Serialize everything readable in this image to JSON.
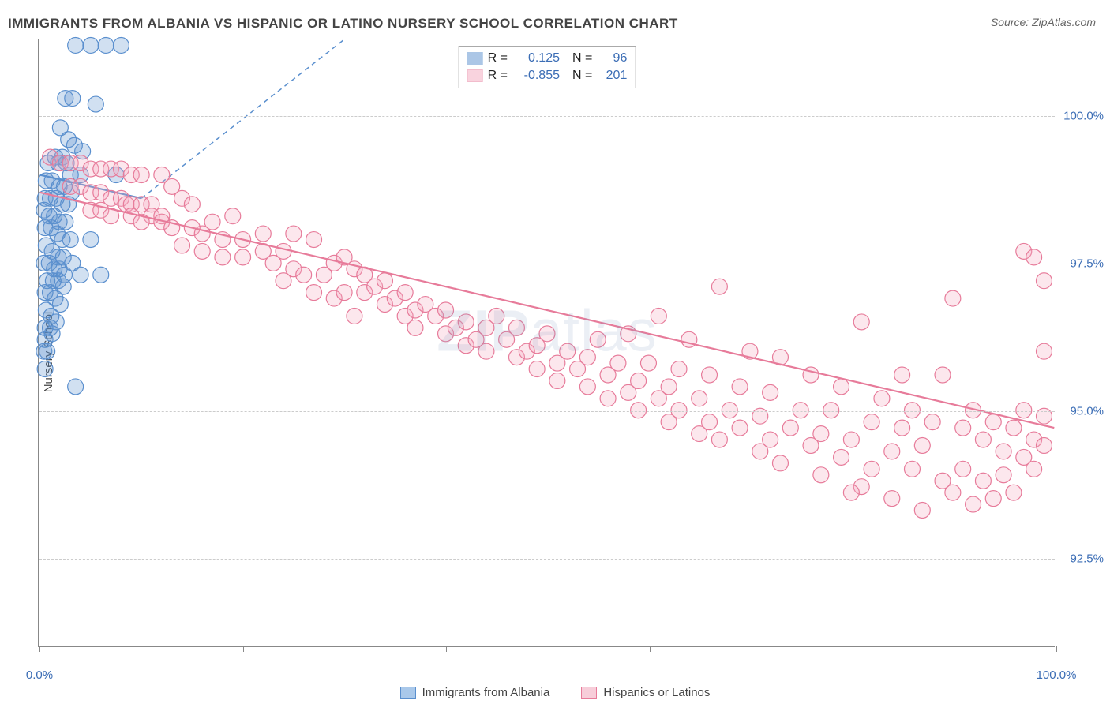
{
  "title": "IMMIGRANTS FROM ALBANIA VS HISPANIC OR LATINO NURSERY SCHOOL CORRELATION CHART",
  "source": "Source: ZipAtlas.com",
  "ylabel": "Nursery School",
  "watermark_bold": "ZIP",
  "watermark_rest": "atlas",
  "chart": {
    "type": "scatter-with-regression",
    "background_color": "#ffffff",
    "grid_color": "#cccccc",
    "axis_color": "#888888",
    "tick_label_color": "#3b6db5",
    "xlim": [
      0,
      100
    ],
    "ylim": [
      91.0,
      101.3
    ],
    "xticks": [
      0,
      20,
      40,
      60,
      80,
      100
    ],
    "xtick_labels": [
      "0.0%",
      "",
      "",
      "",
      "",
      "100.0%"
    ],
    "yticks": [
      92.5,
      95.0,
      97.5,
      100.0
    ],
    "ytick_labels": [
      "92.5%",
      "95.0%",
      "97.5%",
      "100.0%"
    ],
    "marker_radius": 10,
    "marker_stroke_width": 1.2,
    "marker_fill_opacity": 0.28,
    "regression_line_width": 2.2,
    "title_fontsize": 17,
    "label_fontsize": 15,
    "legend_fontsize": 16,
    "series": [
      {
        "name": "Immigrants from Albania",
        "color_stroke": "#5a8fce",
        "color_fill": "#5a8fce",
        "R": "0.125",
        "N": "96",
        "regression": {
          "x1": 0,
          "y1": 99.0,
          "x2": 10,
          "y2": 98.6,
          "dashed": true,
          "extend_to": {
            "x2": 30,
            "y2": 101.3
          }
        },
        "points": [
          [
            3.5,
            101.2
          ],
          [
            5.0,
            101.2
          ],
          [
            6.5,
            101.2
          ],
          [
            8.0,
            101.2
          ],
          [
            2.5,
            100.3
          ],
          [
            3.2,
            100.3
          ],
          [
            5.5,
            100.2
          ],
          [
            2.0,
            99.8
          ],
          [
            2.8,
            99.6
          ],
          [
            3.4,
            99.5
          ],
          [
            4.2,
            99.4
          ],
          [
            1.5,
            99.3
          ],
          [
            2.2,
            99.3
          ],
          [
            0.8,
            99.2
          ],
          [
            1.8,
            99.2
          ],
          [
            2.6,
            99.2
          ],
          [
            3.0,
            99.0
          ],
          [
            4.0,
            99.0
          ],
          [
            7.5,
            99.0
          ],
          [
            0.6,
            98.9
          ],
          [
            1.2,
            98.9
          ],
          [
            1.9,
            98.8
          ],
          [
            2.4,
            98.8
          ],
          [
            3.1,
            98.7
          ],
          [
            0.5,
            98.6
          ],
          [
            1.0,
            98.6
          ],
          [
            1.6,
            98.6
          ],
          [
            2.2,
            98.5
          ],
          [
            2.8,
            98.5
          ],
          [
            0.4,
            98.4
          ],
          [
            0.9,
            98.3
          ],
          [
            1.4,
            98.3
          ],
          [
            1.9,
            98.2
          ],
          [
            2.5,
            98.2
          ],
          [
            0.5,
            98.1
          ],
          [
            1.1,
            98.1
          ],
          [
            1.7,
            98.0
          ],
          [
            2.2,
            97.9
          ],
          [
            3.0,
            97.9
          ],
          [
            5.0,
            97.9
          ],
          [
            0.6,
            97.8
          ],
          [
            1.2,
            97.7
          ],
          [
            1.8,
            97.6
          ],
          [
            2.3,
            97.6
          ],
          [
            3.2,
            97.5
          ],
          [
            0.4,
            97.5
          ],
          [
            0.9,
            97.5
          ],
          [
            1.4,
            97.4
          ],
          [
            1.9,
            97.4
          ],
          [
            2.4,
            97.3
          ],
          [
            4.0,
            97.3
          ],
          [
            6.0,
            97.3
          ],
          [
            0.7,
            97.2
          ],
          [
            1.3,
            97.2
          ],
          [
            1.8,
            97.2
          ],
          [
            2.3,
            97.1
          ],
          [
            0.5,
            97.0
          ],
          [
            1.0,
            97.0
          ],
          [
            1.5,
            96.9
          ],
          [
            2.0,
            96.8
          ],
          [
            0.6,
            96.7
          ],
          [
            1.1,
            96.6
          ],
          [
            1.6,
            96.5
          ],
          [
            0.5,
            96.4
          ],
          [
            1.0,
            96.4
          ],
          [
            0.5,
            96.2
          ],
          [
            1.2,
            96.3
          ],
          [
            0.4,
            96.0
          ],
          [
            0.7,
            96.0
          ],
          [
            0.5,
            95.7
          ],
          [
            3.5,
            95.4
          ]
        ]
      },
      {
        "name": "Hispanics or Latinos",
        "color_stroke": "#e77b9a",
        "color_fill": "#f4a9bf",
        "R": "-0.855",
        "N": "201",
        "regression": {
          "x1": 0,
          "y1": 98.7,
          "x2": 100,
          "y2": 94.7,
          "dashed": false
        },
        "points": [
          [
            1,
            99.3
          ],
          [
            2,
            99.2
          ],
          [
            3,
            99.2
          ],
          [
            4,
            99.2
          ],
          [
            5,
            99.1
          ],
          [
            6,
            99.1
          ],
          [
            7,
            99.1
          ],
          [
            8,
            99.1
          ],
          [
            9,
            99.0
          ],
          [
            10,
            99.0
          ],
          [
            3,
            98.8
          ],
          [
            4,
            98.8
          ],
          [
            5,
            98.7
          ],
          [
            6,
            98.7
          ],
          [
            7,
            98.6
          ],
          [
            8,
            98.6
          ],
          [
            8.5,
            98.5
          ],
          [
            9,
            98.5
          ],
          [
            10,
            98.5
          ],
          [
            11,
            98.5
          ],
          [
            5,
            98.4
          ],
          [
            6,
            98.4
          ],
          [
            7,
            98.3
          ],
          [
            9,
            98.3
          ],
          [
            11,
            98.3
          ],
          [
            12,
            98.3
          ],
          [
            12,
            99.0
          ],
          [
            13,
            98.8
          ],
          [
            14,
            98.6
          ],
          [
            15,
            98.5
          ],
          [
            10,
            98.2
          ],
          [
            12,
            98.2
          ],
          [
            13,
            98.1
          ],
          [
            15,
            98.1
          ],
          [
            17,
            98.2
          ],
          [
            19,
            98.3
          ],
          [
            16,
            98.0
          ],
          [
            18,
            97.9
          ],
          [
            20,
            97.9
          ],
          [
            22,
            98.0
          ],
          [
            14,
            97.8
          ],
          [
            16,
            97.7
          ],
          [
            18,
            97.6
          ],
          [
            20,
            97.6
          ],
          [
            22,
            97.7
          ],
          [
            24,
            97.7
          ],
          [
            25,
            98.0
          ],
          [
            27,
            97.9
          ],
          [
            23,
            97.5
          ],
          [
            25,
            97.4
          ],
          [
            24,
            97.2
          ],
          [
            26,
            97.3
          ],
          [
            28,
            97.3
          ],
          [
            29,
            97.5
          ],
          [
            30,
            97.6
          ],
          [
            31,
            97.4
          ],
          [
            32,
            97.3
          ],
          [
            27,
            97.0
          ],
          [
            29,
            96.9
          ],
          [
            30,
            97.0
          ],
          [
            31,
            96.6
          ],
          [
            32,
            97.0
          ],
          [
            33,
            97.1
          ],
          [
            34,
            97.2
          ],
          [
            34,
            96.8
          ],
          [
            35,
            96.9
          ],
          [
            36,
            97.0
          ],
          [
            36,
            96.6
          ],
          [
            37,
            96.7
          ],
          [
            38,
            96.8
          ],
          [
            37,
            96.4
          ],
          [
            39,
            96.6
          ],
          [
            40,
            96.7
          ],
          [
            40,
            96.3
          ],
          [
            41,
            96.4
          ],
          [
            42,
            96.5
          ],
          [
            42,
            96.1
          ],
          [
            43,
            96.2
          ],
          [
            44,
            96.4
          ],
          [
            45,
            96.6
          ],
          [
            44,
            96.0
          ],
          [
            46,
            96.2
          ],
          [
            47,
            96.4
          ],
          [
            47,
            95.9
          ],
          [
            48,
            96.0
          ],
          [
            49,
            96.1
          ],
          [
            50,
            96.3
          ],
          [
            49,
            95.7
          ],
          [
            51,
            95.8
          ],
          [
            52,
            96.0
          ],
          [
            51,
            95.5
          ],
          [
            53,
            95.7
          ],
          [
            54,
            95.9
          ],
          [
            55,
            96.2
          ],
          [
            54,
            95.4
          ],
          [
            56,
            95.6
          ],
          [
            57,
            95.8
          ],
          [
            58,
            96.3
          ],
          [
            56,
            95.2
          ],
          [
            58,
            95.3
          ],
          [
            59,
            95.5
          ],
          [
            60,
            95.8
          ],
          [
            61,
            96.6
          ],
          [
            59,
            95.0
          ],
          [
            61,
            95.2
          ],
          [
            62,
            95.4
          ],
          [
            63,
            95.7
          ],
          [
            64,
            96.2
          ],
          [
            62,
            94.8
          ],
          [
            63,
            95.0
          ],
          [
            65,
            95.2
          ],
          [
            66,
            95.6
          ],
          [
            67,
            97.1
          ],
          [
            65,
            94.6
          ],
          [
            66,
            94.8
          ],
          [
            68,
            95.0
          ],
          [
            69,
            95.4
          ],
          [
            70,
            96.0
          ],
          [
            67,
            94.5
          ],
          [
            69,
            94.7
          ],
          [
            71,
            94.9
          ],
          [
            72,
            95.3
          ],
          [
            73,
            95.9
          ],
          [
            71,
            94.3
          ],
          [
            72,
            94.5
          ],
          [
            74,
            94.7
          ],
          [
            75,
            95.0
          ],
          [
            76,
            95.6
          ],
          [
            73,
            94.1
          ],
          [
            76,
            94.4
          ],
          [
            77,
            94.6
          ],
          [
            78,
            95.0
          ],
          [
            79,
            95.4
          ],
          [
            85,
            95.6
          ],
          [
            77,
            93.9
          ],
          [
            79,
            94.2
          ],
          [
            80,
            94.5
          ],
          [
            81,
            93.7
          ],
          [
            82,
            94.8
          ],
          [
            83,
            95.2
          ],
          [
            80,
            93.6
          ],
          [
            82,
            94.0
          ],
          [
            84,
            94.3
          ],
          [
            85,
            94.7
          ],
          [
            86,
            95.0
          ],
          [
            89,
            95.6
          ],
          [
            84,
            93.5
          ],
          [
            86,
            94.0
          ],
          [
            87,
            94.4
          ],
          [
            88,
            94.8
          ],
          [
            87,
            93.3
          ],
          [
            89,
            93.8
          ],
          [
            91,
            94.7
          ],
          [
            92,
            95.0
          ],
          [
            81,
            96.5
          ],
          [
            90,
            93.6
          ],
          [
            91,
            94.0
          ],
          [
            93,
            94.5
          ],
          [
            90,
            96.9
          ],
          [
            94,
            94.8
          ],
          [
            92,
            93.4
          ],
          [
            93,
            93.8
          ],
          [
            95,
            94.3
          ],
          [
            96,
            94.7
          ],
          [
            97,
            95.0
          ],
          [
            94,
            93.5
          ],
          [
            95,
            93.9
          ],
          [
            97,
            94.2
          ],
          [
            98,
            94.5
          ],
          [
            99,
            94.9
          ],
          [
            96,
            93.6
          ],
          [
            98,
            94.0
          ],
          [
            99,
            94.4
          ],
          [
            97,
            97.7
          ],
          [
            98,
            97.6
          ],
          [
            99,
            97.2
          ],
          [
            99,
            96.0
          ]
        ]
      }
    ],
    "bottom_legend": [
      {
        "label": "Immigrants from Albania",
        "stroke": "#5a8fce",
        "fill": "#a9c8ea"
      },
      {
        "label": "Hispanics or Latinos",
        "stroke": "#e77b9a",
        "fill": "#f7cdd9"
      }
    ]
  }
}
